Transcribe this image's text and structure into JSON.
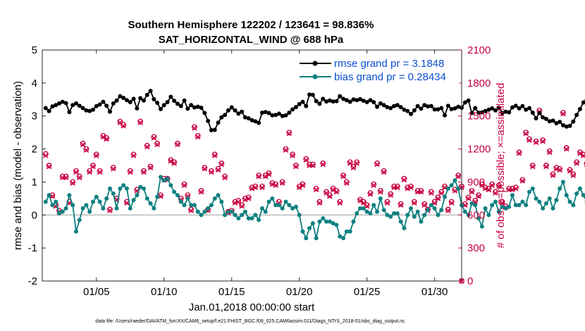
{
  "chart_data": {
    "type": "line",
    "title": "Southern Hemisphere 122202 / 123641 = 98.836%",
    "subtitle": "SAT_HORIZONTAL_WIND @ 688 hPa",
    "xlabel": "Jan.01,2018 00:00:00 start",
    "ylabel": "rmse and bias (model - observation)",
    "ylabel_right": "# of obs: o=possible; ×=assimilated",
    "footnote": "data file: /Users/raeder/DAI/ATM_forcXX/CAM6_setup/f.e21.FHIST_BGC.f09_025.CAM6assim.011/Diags_NTrS_2018-01/obs_diag_output.nc",
    "xlim": [
      1,
      32
    ],
    "ylim": [
      -2,
      5
    ],
    "ylim_right": [
      0,
      2100
    ],
    "x_ticks": [
      5,
      10,
      15,
      20,
      25,
      30
    ],
    "x_tick_labels": [
      "01/05",
      "01/10",
      "01/15",
      "01/20",
      "01/25",
      "01/30"
    ],
    "y_ticks": [
      -2,
      -1,
      0,
      1,
      2,
      3,
      4,
      5
    ],
    "y_tick_labels": [
      "-2",
      "-1",
      "0",
      "1",
      "2",
      "3",
      "4",
      "5"
    ],
    "y_ticks_right": [
      0,
      300,
      600,
      900,
      1200,
      1500,
      1800,
      2100
    ],
    "y_tick_labels_right": [
      "0",
      "300",
      "600",
      "900",
      "1200",
      "1500",
      "1800",
      "2100"
    ],
    "legend_position": "top-right",
    "series": [
      {
        "name": "rmse grand pr = 3.1848",
        "axis": "left",
        "color": "#000000",
        "values": [
          3.24,
          3.15,
          3.29,
          3.33,
          3.38,
          3.43,
          3.39,
          3.12,
          3.33,
          3.38,
          3.31,
          3.24,
          3.17,
          3.15,
          3.19,
          3.3,
          3.35,
          3.43,
          3.31,
          3.13,
          3.38,
          3.47,
          3.6,
          3.55,
          3.48,
          3.42,
          3.52,
          3.23,
          3.54,
          3.47,
          3.64,
          3.76,
          3.51,
          3.4,
          3.21,
          3.33,
          3.42,
          3.58,
          3.46,
          3.37,
          3.3,
          3.47,
          3.22,
          3.33,
          3.26,
          3.28,
          3.25,
          3.09,
          2.85,
          2.57,
          2.58,
          2.8,
          2.96,
          3.03,
          3.17,
          3.26,
          3.17,
          3.07,
          3.13,
          2.96,
          2.93,
          2.87,
          2.84,
          2.79,
          3.1,
          3.12,
          3.09,
          3.02,
          3.03,
          3.07,
          3.0,
          3.02,
          3.1,
          3.2,
          3.27,
          3.36,
          3.43,
          3.3,
          3.65,
          3.64,
          3.45,
          3.37,
          3.52,
          3.44,
          3.47,
          3.44,
          3.45,
          3.6,
          3.52,
          3.48,
          3.43,
          3.5,
          3.48,
          3.51,
          3.46,
          3.42,
          3.48,
          3.42,
          3.28,
          3.38,
          3.33,
          3.27,
          3.24,
          3.3,
          3.33,
          3.27,
          3.19,
          3.15,
          3.06,
          3.17,
          3.3,
          3.22,
          3.33,
          3.29,
          3.3,
          3.2,
          3.2,
          3.24,
          3.02,
          3.31,
          3.21,
          3.23,
          3.28,
          3.25,
          3.41,
          3.47,
          3.09,
          3.24,
          3.1,
          3.11,
          3.15,
          3.19,
          3.23,
          3.17,
          3.25,
          3.09,
          3.13,
          3.11,
          3.26,
          3.31,
          3.23,
          3.3,
          3.19,
          3.24,
          3.1,
          2.93,
          3.09,
          2.96,
          2.91,
          2.84,
          2.86,
          2.78,
          2.82,
          2.72,
          2.68,
          2.7,
          2.83,
          3.03,
          3.21,
          3.41,
          3.5,
          3.38,
          3.25,
          3.35,
          3.24,
          3.01,
          3.05,
          3.2,
          3.08,
          2.96,
          2.94,
          2.99,
          2.98
        ]
      },
      {
        "name": "bias grand pr = 0.28434",
        "axis": "left",
        "color": "#0e8080",
        "values": [
          0.4,
          0.6,
          0.3,
          0.4,
          0.05,
          0.1,
          0.2,
          0.6,
          0.3,
          -0.5,
          -0.15,
          0.2,
          0.3,
          0.1,
          0.4,
          0.55,
          0.4,
          0.2,
          0.5,
          0.8,
          0.65,
          0.2,
          0.8,
          0.9,
          0.8,
          0.2,
          0.45,
          0.6,
          0.85,
          0.8,
          0.5,
          0.35,
          0.2,
          0.55,
          1.15,
          1.05,
          1.1,
          0.9,
          0.7,
          0.6,
          0.4,
          0.3,
          0.5,
          0.3,
          0.3,
          0.1,
          0.0,
          0.1,
          0.2,
          0.3,
          0.5,
          0.6,
          0.4,
          0.0,
          0.1,
          0.1,
          0.0,
          -0.1,
          0.0,
          0.1,
          -0.1,
          -0.1,
          0.0,
          -0.15,
          0.2,
          0.1,
          0.4,
          0.5,
          0.3,
          0.3,
          0.2,
          0.4,
          0.3,
          0.2,
          0.25,
          0.0,
          -0.5,
          -0.7,
          -0.4,
          -0.25,
          -0.7,
          -0.2,
          -0.1,
          -0.2,
          -0.2,
          -0.25,
          -0.3,
          -0.65,
          -0.7,
          -0.5,
          -0.5,
          -0.2,
          0.05,
          0.2,
          0.2,
          0.1,
          0.05,
          0.3,
          0.1,
          0.5,
          0.15,
          0.0,
          -0.05,
          0.05,
          0.05,
          -0.2,
          -0.4,
          0.0,
          0.2,
          -0.05,
          0.1,
          -0.2,
          0.0,
          0.15,
          0.3,
          0.2,
          0.0,
          0.15,
          0.55,
          0.8,
          0.9,
          1.05,
          0.8,
          0.3,
          0.1,
          0.0,
          0.35,
          0.3,
          -0.1,
          -0.35,
          0.2,
          0.0,
          0.3,
          0.4,
          0.1,
          0.25,
          0.2,
          0.25,
          0.6,
          0.3,
          0.3,
          0.4,
          0.3,
          0.7,
          0.8,
          0.5,
          0.4,
          0.2,
          0.35,
          0.5,
          0.2,
          0.45,
          0.8,
          1.0,
          0.6,
          0.4,
          0.3,
          0.65,
          0.8,
          0.6,
          0.4,
          0.5,
          0.65,
          0.5,
          0.2,
          -0.45,
          -0.05,
          -0.2,
          -0.45,
          -0.35,
          0.0,
          0.3,
          0.2
        ]
      },
      {
        "name": "# of obs possible (o)",
        "axis": "right",
        "color": "#c8003f",
        "values": [
          1155,
          1050,
          780,
          690,
          640,
          950,
          950,
          720,
          900,
          1000,
          950,
          1250,
          1200,
          1000,
          1050,
          1150,
          1000,
          1320,
          1300,
          650,
          1030,
          750,
          1450,
          1420,
          720,
          1000,
          1150,
          830,
          1450,
          1000,
          1230,
          1040,
          1310,
          1250,
          780,
          930,
          930,
          1100,
          1080,
          1250,
          750,
          880,
          780,
          650,
          1400,
          1320,
          820,
          1030,
          650,
          1000,
          1150,
          1020,
          1070,
          950,
          630,
          640,
          720,
          730,
          690,
          750,
          760,
          850,
          860,
          960,
          860,
          960,
          980,
          890,
          880,
          720,
          900,
          1200,
          1350,
          1150,
          1050,
          860,
          880,
          1110,
          1060,
          1060,
          840,
          720,
          1070,
          810,
          780,
          840,
          820,
          720,
          960,
          900,
          1080,
          1040,
          1080,
          740,
          720,
          690,
          800,
          880,
          1070,
          820,
          1000,
          720,
          790,
          860,
          860,
          700,
          930,
          850,
          860,
          720,
          820,
          820,
          700,
          650,
          810,
          720,
          760,
          810,
          860,
          650,
          720,
          830,
          960,
          860,
          700,
          760,
          820,
          730,
          780,
          880,
          850,
          840,
          880,
          810,
          870,
          720,
          680,
          840,
          840,
          850,
          1170,
          920,
          1350,
          1290,
          1050,
          1270,
          1550,
          1280,
          1050,
          1180,
          970,
          1030,
          1020,
          1530,
          1210,
          1010,
          970,
          1080,
          1170,
          1150,
          1070,
          920,
          1020,
          1250,
          1400,
          1440,
          1380,
          1460,
          1540,
          1680,
          1410,
          1350,
          1230,
          1170,
          1230
        ]
      },
      {
        "name": "# of obs assimilated (×)",
        "axis": "right",
        "color": "#c8003f",
        "values": [
          1140,
          1040,
          770,
          680,
          630,
          940,
          940,
          710,
          890,
          990,
          940,
          1240,
          1190,
          990,
          1040,
          1140,
          990,
          1310,
          1290,
          640,
          1020,
          740,
          1440,
          1410,
          710,
          990,
          1140,
          820,
          1440,
          990,
          1220,
          1030,
          1300,
          1240,
          770,
          920,
          920,
          1090,
          1070,
          1240,
          740,
          870,
          770,
          640,
          1390,
          1310,
          810,
          1020,
          640,
          990,
          1140,
          1010,
          1060,
          940,
          620,
          630,
          710,
          720,
          680,
          740,
          750,
          840,
          850,
          950,
          850,
          950,
          970,
          880,
          870,
          710,
          890,
          1190,
          1340,
          1140,
          1040,
          850,
          870,
          1100,
          1050,
          1050,
          830,
          710,
          1060,
          800,
          770,
          830,
          810,
          710,
          950,
          890,
          1070,
          1030,
          1070,
          730,
          710,
          680,
          790,
          870,
          1060,
          810,
          990,
          710,
          780,
          850,
          850,
          690,
          920,
          840,
          850,
          710,
          810,
          810,
          690,
          640,
          800,
          710,
          750,
          800,
          850,
          640,
          710,
          820,
          950,
          850,
          690,
          750,
          810,
          720,
          770,
          870,
          840,
          830,
          870,
          800,
          860,
          710,
          670,
          830,
          830,
          840,
          1160,
          910,
          1340,
          1280,
          1040,
          1260,
          1540,
          1270,
          1040,
          1170,
          960,
          1020,
          1010,
          1520,
          1200,
          1000,
          960,
          1070,
          1160,
          1140,
          1060,
          910,
          1010,
          1240,
          1390,
          1430,
          1370,
          1450,
          1530,
          1670,
          1400,
          1340,
          1220,
          1160,
          1220
        ]
      }
    ]
  }
}
